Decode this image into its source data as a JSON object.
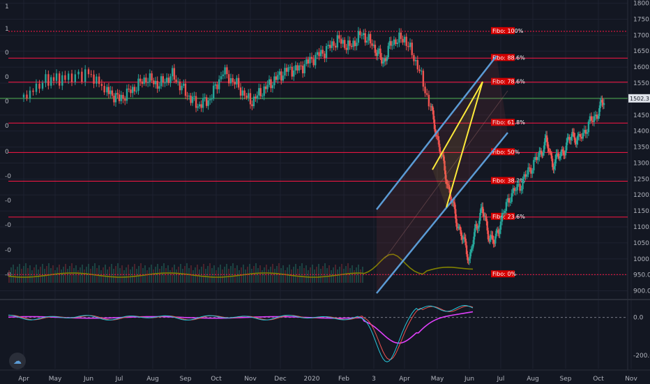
{
  "chart_data": {
    "type": "candlestick",
    "x_ticks": [
      "Apr",
      "May",
      "Jun",
      "Jul",
      "Aug",
      "Sep",
      "Oct",
      "Nov",
      "Dec",
      "2020",
      "Feb",
      "3",
      "Apr",
      "May",
      "Jun",
      "Jul",
      "Aug",
      "Sep",
      "Oct",
      "Nov"
    ],
    "y_ticks": [
      1800,
      1750,
      1700,
      1650,
      1600,
      1550,
      1500,
      1450,
      1400,
      1350,
      1300,
      1250,
      1200,
      1150,
      1100,
      1050,
      1000,
      950,
      900
    ],
    "y_labels": [
      "1800.0",
      "1750.0",
      "1700.0",
      "1650.0",
      "1600.0",
      "1550.0",
      "1500.0",
      "1450.0",
      "1400.0",
      "1350.0",
      "1300.0",
      "1250.0",
      "1200.0",
      "1150.0",
      "1100.0",
      "1050.0",
      "1000.0",
      "950.0",
      "900.0"
    ],
    "ylim": [
      875,
      1810
    ],
    "last_price": "1502.3",
    "left_scale_labels": [
      "1",
      "1",
      "0",
      "0",
      "0",
      "0",
      "0",
      "-0",
      "-0",
      "-0",
      "-0",
      "-0"
    ],
    "fibonacci": [
      {
        "label": "Fibo: 100%",
        "value": 1712
      },
      {
        "label": "Fibo: 88.6%",
        "value": 1628
      },
      {
        "label": "Fibo: 78.6%",
        "value": 1553
      },
      {
        "label": "Fibo: 61.8%",
        "value": 1425
      },
      {
        "label": "Fibo: 50%",
        "value": 1333
      },
      {
        "label": "Fibo: 38.2%",
        "value": 1243
      },
      {
        "label": "Fibo: 23.6%",
        "value": 1131
      },
      {
        "label": "Fibo: 0%",
        "value": 951
      }
    ],
    "price_series": [
      {
        "t": 0,
        "v": 1505
      },
      {
        "t": 0.7,
        "v": 1560
      },
      {
        "t": 1.3,
        "v": 1565
      },
      {
        "t": 2,
        "v": 1580
      },
      {
        "t": 2.6,
        "v": 1525
      },
      {
        "t": 3,
        "v": 1500
      },
      {
        "t": 3.4,
        "v": 1530
      },
      {
        "t": 3.8,
        "v": 1565
      },
      {
        "t": 4.2,
        "v": 1545
      },
      {
        "t": 4.6,
        "v": 1575
      },
      {
        "t": 5,
        "v": 1520
      },
      {
        "t": 5.4,
        "v": 1480
      },
      {
        "t": 5.8,
        "v": 1500
      },
      {
        "t": 6.2,
        "v": 1585
      },
      {
        "t": 6.6,
        "v": 1545
      },
      {
        "t": 7,
        "v": 1490
      },
      {
        "t": 7.4,
        "v": 1525
      },
      {
        "t": 7.8,
        "v": 1560
      },
      {
        "t": 8.2,
        "v": 1590
      },
      {
        "t": 8.6,
        "v": 1595
      },
      {
        "t": 9,
        "v": 1625
      },
      {
        "t": 9.4,
        "v": 1650
      },
      {
        "t": 9.8,
        "v": 1685
      },
      {
        "t": 10.2,
        "v": 1662
      },
      {
        "t": 10.6,
        "v": 1705
      },
      {
        "t": 11,
        "v": 1665
      },
      {
        "t": 11.3,
        "v": 1615
      },
      {
        "t": 11.6,
        "v": 1680
      },
      {
        "t": 12,
        "v": 1690
      },
      {
        "t": 12.4,
        "v": 1605
      },
      {
        "t": 12.8,
        "v": 1470
      },
      {
        "t": 13,
        "v": 1380
      },
      {
        "t": 13.2,
        "v": 1290
      },
      {
        "t": 13.4,
        "v": 1200
      },
      {
        "t": 13.6,
        "v": 1120
      },
      {
        "t": 13.8,
        "v": 1060
      },
      {
        "t": 14,
        "v": 1000
      },
      {
        "t": 14.2,
        "v": 1090
      },
      {
        "t": 14.4,
        "v": 1160
      },
      {
        "t": 14.6,
        "v": 1080
      },
      {
        "t": 14.8,
        "v": 1050
      },
      {
        "t": 15,
        "v": 1120
      },
      {
        "t": 15.3,
        "v": 1200
      },
      {
        "t": 15.6,
        "v": 1230
      },
      {
        "t": 15.9,
        "v": 1280
      },
      {
        "t": 16.2,
        "v": 1325
      },
      {
        "t": 16.4,
        "v": 1370
      },
      {
        "t": 16.6,
        "v": 1300
      },
      {
        "t": 16.8,
        "v": 1320
      },
      {
        "t": 17,
        "v": 1350
      },
      {
        "t": 17.2,
        "v": 1390
      },
      {
        "t": 17.4,
        "v": 1370
      },
      {
        "t": 17.7,
        "v": 1420
      },
      {
        "t": 18,
        "v": 1460
      },
      {
        "t": 18.2,
        "v": 1502
      }
    ],
    "oscillator": {
      "zero_line": 0,
      "labels": [
        "0.0",
        "-200.0"
      ],
      "ylim": [
        -260,
        80
      ]
    }
  },
  "icons": {
    "logo": "tradingview-cloud-icon"
  },
  "colors": {
    "background": "#131722",
    "grid": "#1e2230",
    "up": "#26a69a",
    "down": "#ef5350",
    "fibo_line": "#ff1744",
    "channel": "#5b9bd5",
    "wedge": "#ffeb3b",
    "volume_ma": "#808000",
    "osc_fast": "#26c6da",
    "osc_slow": "#e040fb",
    "last_price_line": "#4caf50"
  }
}
